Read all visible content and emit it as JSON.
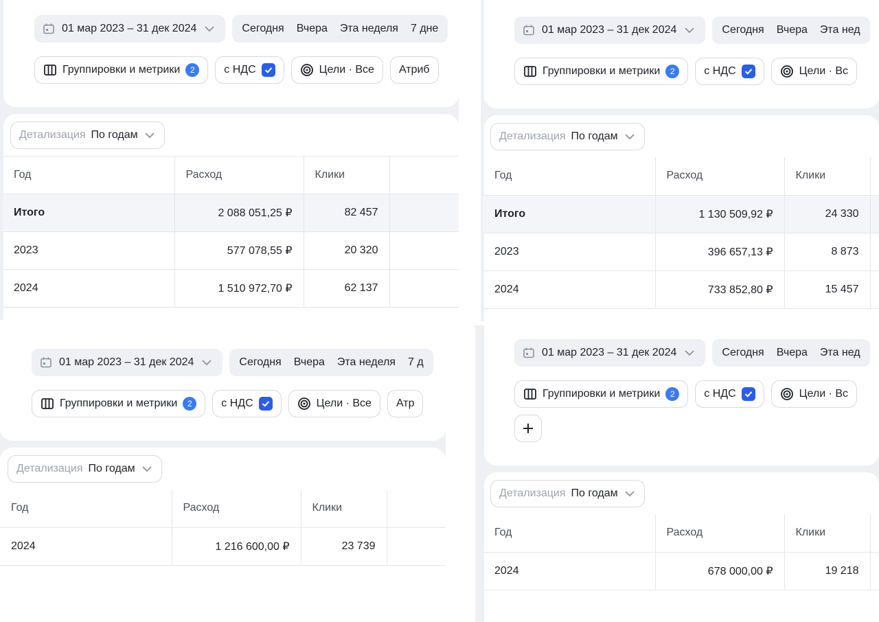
{
  "colors": {
    "accent": "#2a5ee8",
    "badge": "#3a7bf0",
    "panel_bg": "#eef0f3",
    "border": "#d6d9df"
  },
  "panels": [
    {
      "filters": {
        "date_range": "01 мар 2023 – 31 дек 2024",
        "quick": [
          "Сегодня",
          "Вчера",
          "Эта неделя",
          "7 дне"
        ],
        "groupings_label": "Группировки и метрики",
        "groupings_count": "2",
        "vat_label": "с НДС",
        "goals_label": "Цели · Все",
        "attribution_label": "Атриб"
      },
      "detail": {
        "label": "Детализация",
        "value": "По годам"
      },
      "table": {
        "headers": [
          "Год",
          "Расход",
          "Клики"
        ],
        "rows": [
          {
            "year": "Итого",
            "cost": "2 088 051,25 ₽",
            "clicks": "82 457",
            "total": true
          },
          {
            "year": "2023",
            "cost": "577 078,55 ₽",
            "clicks": "20 320"
          },
          {
            "year": "2024",
            "cost": "1 510 972,70 ₽",
            "clicks": "62 137"
          }
        ]
      }
    },
    {
      "filters": {
        "date_range": "01 мар 2023 – 31 дек 2024",
        "quick": [
          "Сегодня",
          "Вчера",
          "Эта нед"
        ],
        "groupings_label": "Группировки и метрики",
        "groupings_count": "2",
        "vat_label": "с НДС",
        "goals_label": "Цели · Вс"
      },
      "detail": {
        "label": "Детализация",
        "value": "По годам"
      },
      "table": {
        "headers": [
          "Год",
          "Расход",
          "Клики"
        ],
        "rows": [
          {
            "year": "Итого",
            "cost": "1 130 509,92 ₽",
            "clicks": "24 330",
            "total": true
          },
          {
            "year": "2023",
            "cost": "396 657,13 ₽",
            "clicks": "8 873"
          },
          {
            "year": "2024",
            "cost": "733 852,80 ₽",
            "clicks": "15 457"
          }
        ]
      }
    },
    {
      "filters": {
        "date_range": "01 мар 2023 – 31 дек 2024",
        "quick": [
          "Сегодня",
          "Вчера",
          "Эта неделя",
          "7 д"
        ],
        "groupings_label": "Группировки и метрики",
        "groupings_count": "2",
        "vat_label": "с НДС",
        "goals_label": "Цели · Все",
        "attribution_label": "Атр"
      },
      "detail": {
        "label": "Детализация",
        "value": "По годам"
      },
      "table": {
        "headers": [
          "Год",
          "Расход",
          "Клики"
        ],
        "rows": [
          {
            "year": "2024",
            "cost": "1 216 600,00 ₽",
            "clicks": "23 739"
          }
        ]
      }
    },
    {
      "filters": {
        "date_range": "01 мар 2023 – 31 дек 2024",
        "quick": [
          "Сегодня",
          "Вчера",
          "Эта нед"
        ],
        "groupings_label": "Группировки и метрики",
        "groupings_count": "2",
        "vat_label": "с НДС",
        "goals_label": "Цели · Вс"
      },
      "detail": {
        "label": "Детализация",
        "value": "По годам"
      },
      "table": {
        "headers": [
          "Год",
          "Расход",
          "Клики"
        ],
        "rows": [
          {
            "year": "2024",
            "cost": "678 000,00 ₽",
            "clicks": "19 218"
          }
        ]
      }
    }
  ]
}
